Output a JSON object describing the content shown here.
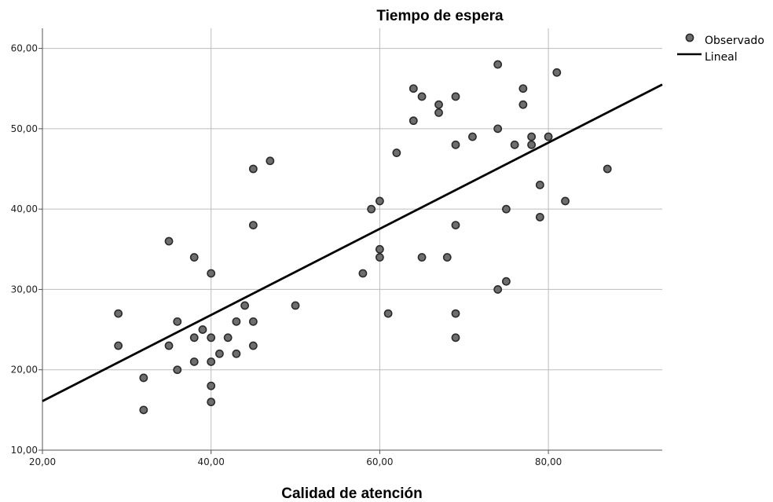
{
  "chart_data": {
    "type": "scatter",
    "title": "Tiempo de espera",
    "xlabel": "Calidad de atención",
    "ylabel": "",
    "xlim": [
      20,
      93.5
    ],
    "ylim": [
      10,
      62.5
    ],
    "x_ticks": [
      20,
      40,
      60,
      80
    ],
    "x_tick_labels": [
      "20,00",
      "40,00",
      "60,00",
      "80,00"
    ],
    "y_ticks": [
      10,
      20,
      30,
      40,
      50,
      60
    ],
    "y_tick_labels": [
      "10,00",
      "20,00",
      "30,00",
      "40,00",
      "50,00",
      "60,00"
    ],
    "grid": true,
    "legend_position": "top-right",
    "series": [
      {
        "name": "Observado",
        "kind": "points",
        "color": "#6e6e6e",
        "points": [
          [
            29,
            27
          ],
          [
            29,
            23
          ],
          [
            32,
            19
          ],
          [
            32,
            15
          ],
          [
            35,
            36
          ],
          [
            35,
            23
          ],
          [
            36,
            26
          ],
          [
            36,
            20
          ],
          [
            38,
            34
          ],
          [
            38,
            24
          ],
          [
            38,
            21
          ],
          [
            39,
            25
          ],
          [
            40,
            32
          ],
          [
            40,
            24
          ],
          [
            40,
            21
          ],
          [
            40,
            18
          ],
          [
            40,
            16
          ],
          [
            41,
            22
          ],
          [
            42,
            24
          ],
          [
            43,
            26
          ],
          [
            43,
            22
          ],
          [
            44,
            28
          ],
          [
            45,
            45
          ],
          [
            45,
            38
          ],
          [
            45,
            26
          ],
          [
            45,
            23
          ],
          [
            47,
            46
          ],
          [
            50,
            28
          ],
          [
            58,
            32
          ],
          [
            59,
            40
          ],
          [
            60,
            41
          ],
          [
            60,
            35
          ],
          [
            60,
            34
          ],
          [
            61,
            27
          ],
          [
            62,
            47
          ],
          [
            64,
            55
          ],
          [
            64,
            51
          ],
          [
            65,
            54
          ],
          [
            65,
            34
          ],
          [
            67,
            53
          ],
          [
            67,
            52
          ],
          [
            68,
            34
          ],
          [
            69,
            54
          ],
          [
            69,
            48
          ],
          [
            69,
            38
          ],
          [
            69,
            27
          ],
          [
            69,
            24
          ],
          [
            71,
            49
          ],
          [
            74,
            58
          ],
          [
            74,
            50
          ],
          [
            74,
            30
          ],
          [
            75,
            40
          ],
          [
            75,
            31
          ],
          [
            76,
            48
          ],
          [
            77,
            55
          ],
          [
            77,
            53
          ],
          [
            78,
            49
          ],
          [
            78,
            48
          ],
          [
            79,
            43
          ],
          [
            79,
            39
          ],
          [
            80,
            49
          ],
          [
            81,
            57
          ],
          [
            82,
            41
          ],
          [
            87,
            45
          ]
        ]
      },
      {
        "name": "Lineal",
        "kind": "line",
        "color": "#000000",
        "points": [
          [
            20,
            16.1
          ],
          [
            93.5,
            55.5
          ]
        ]
      }
    ]
  }
}
